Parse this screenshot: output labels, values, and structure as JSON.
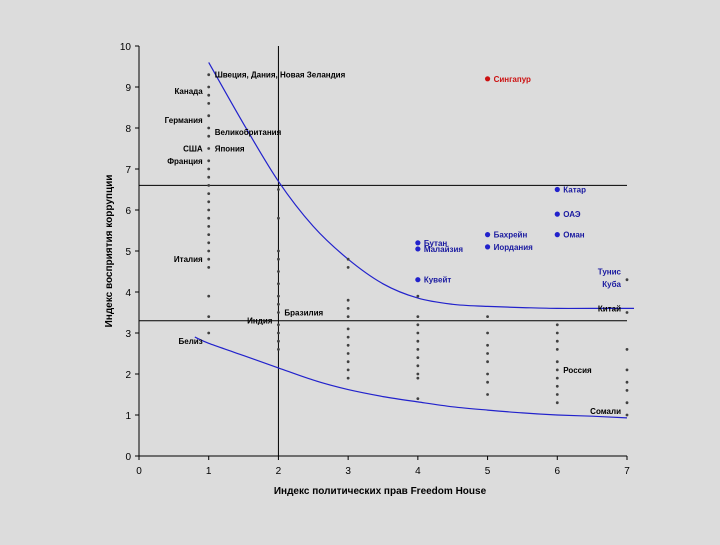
{
  "chart_data": {
    "type": "scatter",
    "title": "",
    "xlabel": "Индекс политических прав Freedom House",
    "ylabel": "Индекс восприятия коррупции",
    "xlim": [
      0,
      7
    ],
    "ylim": [
      0,
      10
    ],
    "xticks": [
      "0",
      "1",
      "2",
      "3",
      "4",
      "5",
      "6",
      "7"
    ],
    "yticks": [
      "0",
      "1",
      "2",
      "3",
      "4",
      "5",
      "6",
      "7",
      "8",
      "9",
      "10"
    ],
    "reference_lines": {
      "vertical_x": 2,
      "horizontal_y": [
        6.6,
        3.3
      ]
    },
    "colors": {
      "background": "#dcdcdc",
      "points": "#404040",
      "labels": "#000000",
      "highlight_point": "#2222cc",
      "highlight_label": "#1a1aa0",
      "singapore": "#cc1111",
      "curve": "#2222cc",
      "axis": "#000000"
    },
    "curves": [
      {
        "name": "upper-curve",
        "points": [
          [
            1,
            9.6
          ],
          [
            1.5,
            8.1
          ],
          [
            2,
            6.7
          ],
          [
            2.5,
            5.6
          ],
          [
            3,
            4.8
          ],
          [
            3.5,
            4.2
          ],
          [
            4,
            3.85
          ],
          [
            4.5,
            3.7
          ],
          [
            5,
            3.65
          ],
          [
            5.5,
            3.62
          ],
          [
            6,
            3.6
          ],
          [
            6.5,
            3.6
          ],
          [
            7.1,
            3.6
          ]
        ]
      },
      {
        "name": "lower-curve",
        "points": [
          [
            0.8,
            2.9
          ],
          [
            1,
            2.75
          ],
          [
            1.5,
            2.45
          ],
          [
            2,
            2.15
          ],
          [
            2.5,
            1.85
          ],
          [
            3,
            1.62
          ],
          [
            3.5,
            1.45
          ],
          [
            4,
            1.32
          ],
          [
            4.5,
            1.2
          ],
          [
            5,
            1.12
          ],
          [
            5.5,
            1.05
          ],
          [
            6,
            1.0
          ],
          [
            6.5,
            0.97
          ],
          [
            7,
            0.93
          ]
        ]
      }
    ],
    "point_columns": [
      {
        "x": 1,
        "y": [
          9.3,
          9.0,
          8.8,
          8.6,
          8.3,
          8.0,
          7.8,
          7.5,
          7.2,
          7.0,
          6.8,
          6.6,
          6.4,
          6.2,
          6.0,
          5.8,
          5.6,
          5.4,
          5.2,
          5.0,
          4.8,
          4.6,
          3.9,
          3.4,
          3.0
        ]
      },
      {
        "x": 2,
        "y": [
          6.5,
          5.8,
          5.0,
          4.8,
          4.5,
          4.2,
          3.9,
          3.7,
          3.5,
          3.2,
          3.0,
          2.8,
          2.6
        ]
      },
      {
        "x": 3,
        "y": [
          4.8,
          4.6,
          3.8,
          3.6,
          3.4,
          3.1,
          2.9,
          2.7,
          2.5,
          2.3,
          2.1,
          1.9
        ]
      },
      {
        "x": 4,
        "y": [
          3.9,
          3.4,
          3.2,
          3.0,
          2.8,
          2.6,
          2.4,
          2.2,
          2.0,
          1.9,
          1.4
        ]
      },
      {
        "x": 5,
        "y": [
          3.4,
          3.0,
          2.7,
          2.5,
          2.3,
          2.0,
          1.8,
          1.5
        ]
      },
      {
        "x": 6,
        "y": [
          3.2,
          3.0,
          2.8,
          2.6,
          2.3,
          2.1,
          1.9,
          1.7,
          1.5,
          1.3
        ]
      },
      {
        "x": 7,
        "y": [
          4.3,
          3.5,
          2.6,
          2.1,
          1.8,
          1.6,
          1.3,
          1.0
        ]
      }
    ],
    "labeled_points": [
      {
        "x": 1,
        "y": 9.3,
        "label": "Швеция, Дания, Новая Зеландия",
        "side": "right",
        "color": "labels",
        "marker": false
      },
      {
        "x": 1,
        "y": 8.9,
        "label": "Канада",
        "side": "left",
        "color": "labels",
        "marker": false
      },
      {
        "x": 1,
        "y": 8.2,
        "label": "Германия",
        "side": "left",
        "color": "labels",
        "marker": false
      },
      {
        "x": 1,
        "y": 7.9,
        "label": "Великобритания",
        "side": "right",
        "color": "labels",
        "marker": false
      },
      {
        "x": 1,
        "y": 7.5,
        "label": "США",
        "side": "left",
        "color": "labels",
        "marker": false
      },
      {
        "x": 1,
        "y": 7.5,
        "label": "Япония",
        "side": "right",
        "color": "labels",
        "marker": false
      },
      {
        "x": 1,
        "y": 7.2,
        "label": "Франция",
        "side": "left",
        "color": "labels",
        "marker": false
      },
      {
        "x": 1,
        "y": 4.8,
        "label": "Италия",
        "side": "left",
        "color": "labels",
        "marker": false
      },
      {
        "x": 1,
        "y": 2.8,
        "label": "Белиз",
        "side": "left",
        "color": "labels",
        "marker": false
      },
      {
        "x": 2,
        "y": 3.3,
        "label": "Индия",
        "side": "left",
        "color": "labels",
        "marker": false
      },
      {
        "x": 2,
        "y": 3.5,
        "label": "Бразилия",
        "side": "right",
        "color": "labels",
        "marker": false
      },
      {
        "x": 4,
        "y": 5.2,
        "label": "Бутан",
        "side": "right",
        "color": "highlight_label",
        "marker": true
      },
      {
        "x": 4,
        "y": 5.05,
        "label": "Малайзия",
        "side": "right",
        "color": "highlight_label",
        "marker": true
      },
      {
        "x": 4,
        "y": 4.3,
        "label": "Кувейт",
        "side": "right",
        "color": "highlight_label",
        "marker": true
      },
      {
        "x": 5,
        "y": 9.2,
        "label": "Сингапур",
        "side": "right",
        "color": "singapore",
        "marker": true
      },
      {
        "x": 5,
        "y": 5.4,
        "label": "Бахрейн",
        "side": "right",
        "color": "highlight_label",
        "marker": true
      },
      {
        "x": 5,
        "y": 5.1,
        "label": "Иордания",
        "side": "right",
        "color": "highlight_label",
        "marker": true
      },
      {
        "x": 6,
        "y": 6.5,
        "label": "Катар",
        "side": "right",
        "color": "highlight_label",
        "marker": true
      },
      {
        "x": 6,
        "y": 5.9,
        "label": "ОАЭ",
        "side": "right",
        "color": "highlight_label",
        "marker": true
      },
      {
        "x": 6,
        "y": 5.4,
        "label": "Оман",
        "side": "right",
        "color": "highlight_label",
        "marker": true
      },
      {
        "x": 7,
        "y": 4.5,
        "label": "Тунис",
        "side": "left",
        "color": "highlight_label",
        "marker": false
      },
      {
        "x": 7,
        "y": 4.2,
        "label": "Куба",
        "side": "left",
        "color": "highlight_label",
        "marker": false
      },
      {
        "x": 7,
        "y": 3.6,
        "label": "Китай",
        "side": "left",
        "color": "labels",
        "marker": false
      },
      {
        "x": 6,
        "y": 2.1,
        "label": "Россия",
        "side": "right",
        "color": "labels",
        "marker": false
      },
      {
        "x": 7,
        "y": 1.1,
        "label": "Сомали",
        "side": "left",
        "color": "labels",
        "marker": false
      }
    ]
  }
}
